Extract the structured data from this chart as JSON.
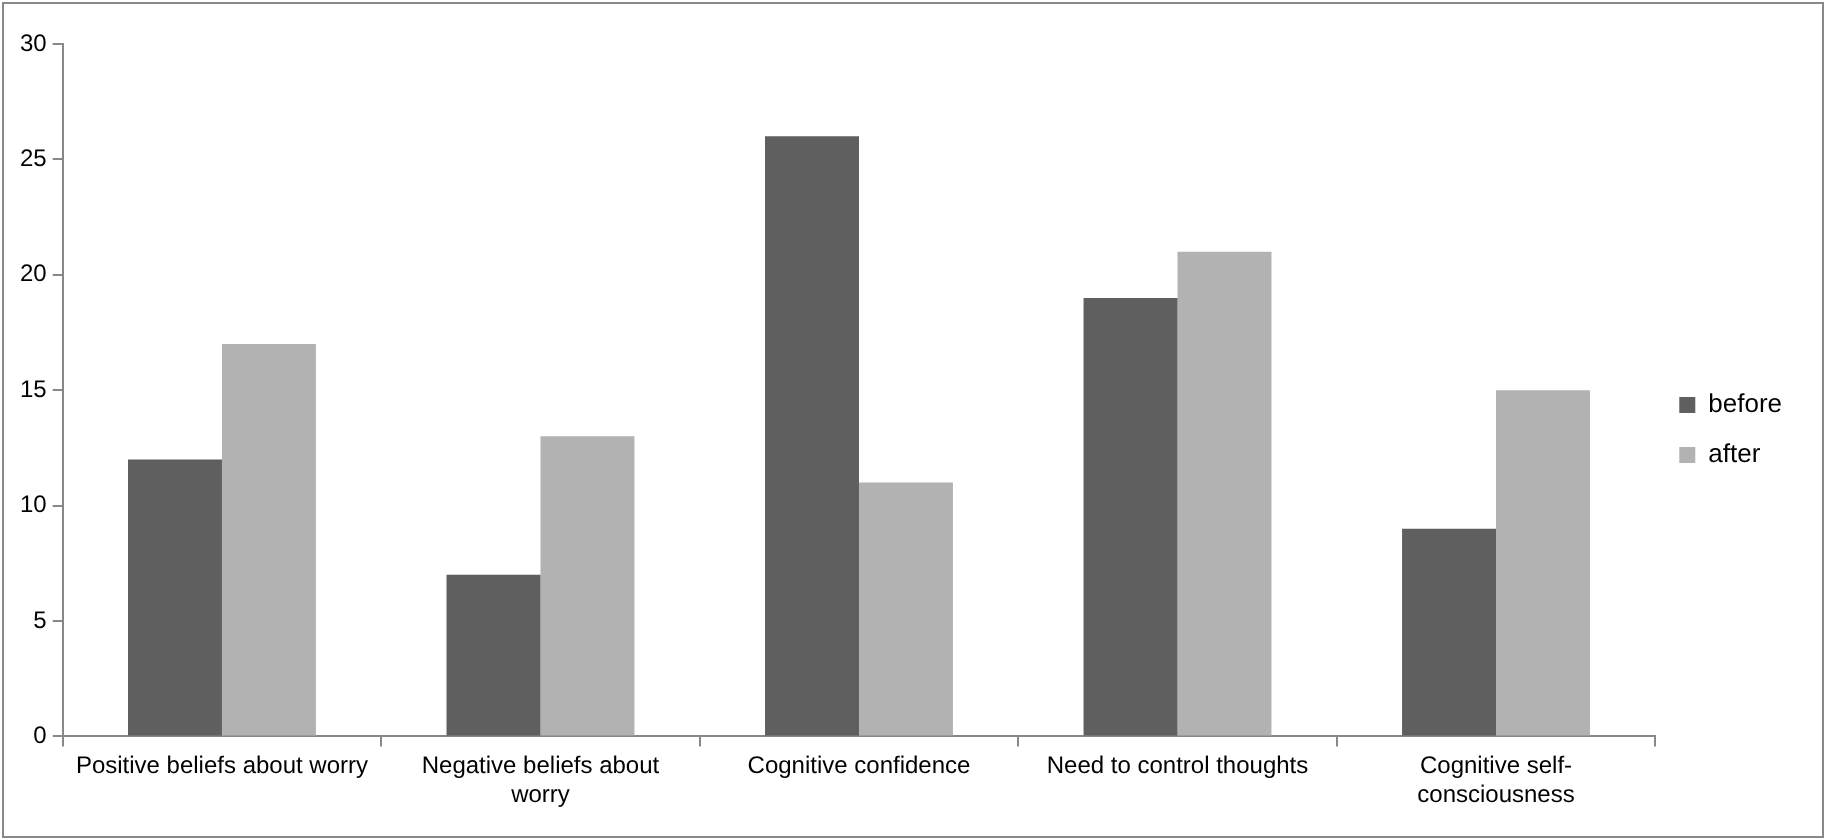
{
  "chart_data": {
    "type": "bar",
    "categories": [
      "Positive beliefs about worry",
      "Negative beliefs about worry",
      "Cognitive confidence",
      "Need to control thoughts",
      "Cognitive self-consciousness"
    ],
    "series": [
      {
        "name": "before",
        "color": "#5f5f5f",
        "values": [
          12,
          7,
          26,
          19,
          9
        ]
      },
      {
        "name": "after",
        "color": "#b2b2b2",
        "values": [
          17,
          13,
          11,
          21,
          15
        ]
      }
    ],
    "ylim": [
      0,
      30
    ],
    "yticks": [
      0,
      5,
      10,
      15,
      20,
      25,
      30
    ],
    "grid": false,
    "legend": "right"
  }
}
